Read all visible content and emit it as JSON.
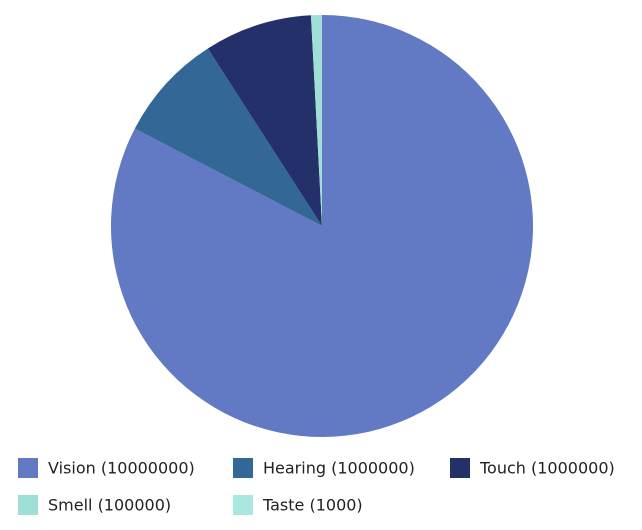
{
  "chart_data": {
    "type": "pie",
    "categories": [
      "Vision (10000000)",
      "Hearing (1000000)",
      "Touch (1000000)",
      "Smell (100000)",
      "Taste (1000)"
    ],
    "values": [
      10000000,
      1000000,
      1000000,
      100000,
      1000
    ],
    "colors": [
      "#6279c4",
      "#336896",
      "#23306a",
      "#9fdfd5",
      "#a8e8e0"
    ]
  }
}
